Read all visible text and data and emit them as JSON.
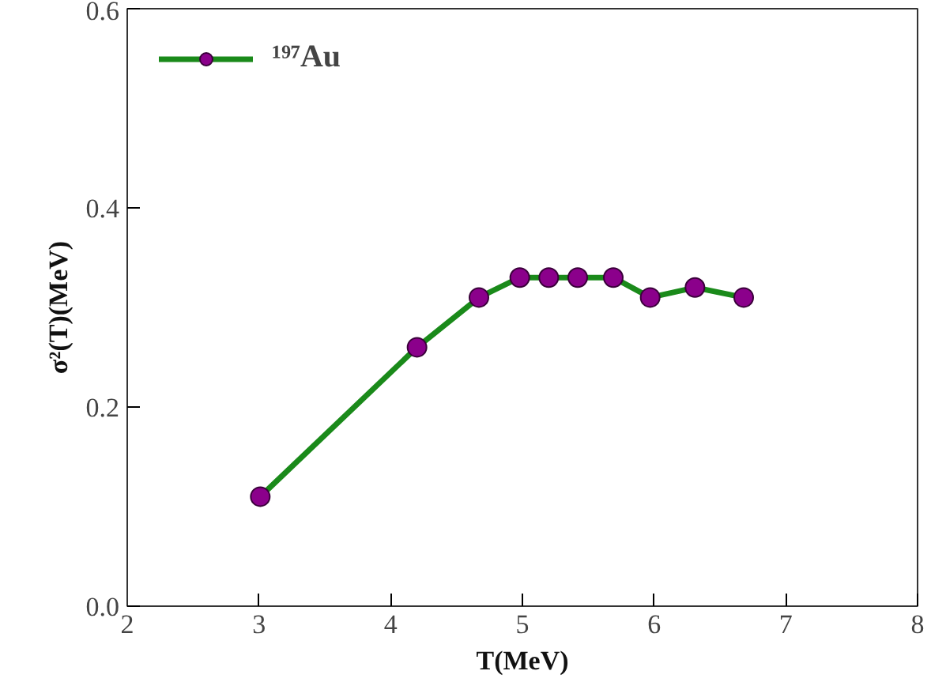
{
  "chart_data": {
    "type": "line",
    "xlabel": "T(MeV)",
    "ylabel": "σ²(T)(MeV)",
    "x": [
      3.01,
      4.2,
      4.67,
      4.98,
      5.2,
      5.42,
      5.69,
      5.97,
      6.31,
      6.68
    ],
    "series": [
      {
        "name": "¹⁹⁷Au",
        "color": "#1a8a1a",
        "values": [
          0.11,
          0.26,
          0.31,
          0.33,
          0.33,
          0.33,
          0.33,
          0.31,
          0.32,
          0.31
        ]
      }
    ],
    "xlim": [
      2,
      8
    ],
    "ylim": [
      0,
      0.6
    ],
    "xticks": [
      2,
      3,
      4,
      5,
      6,
      7,
      8
    ],
    "yticks": [
      {
        "value": 0,
        "label": "0.0"
      },
      0.2,
      0.4,
      0.6
    ],
    "marker": "circle",
    "line_style": "solid",
    "legend": "top left",
    "grid": false
  }
}
